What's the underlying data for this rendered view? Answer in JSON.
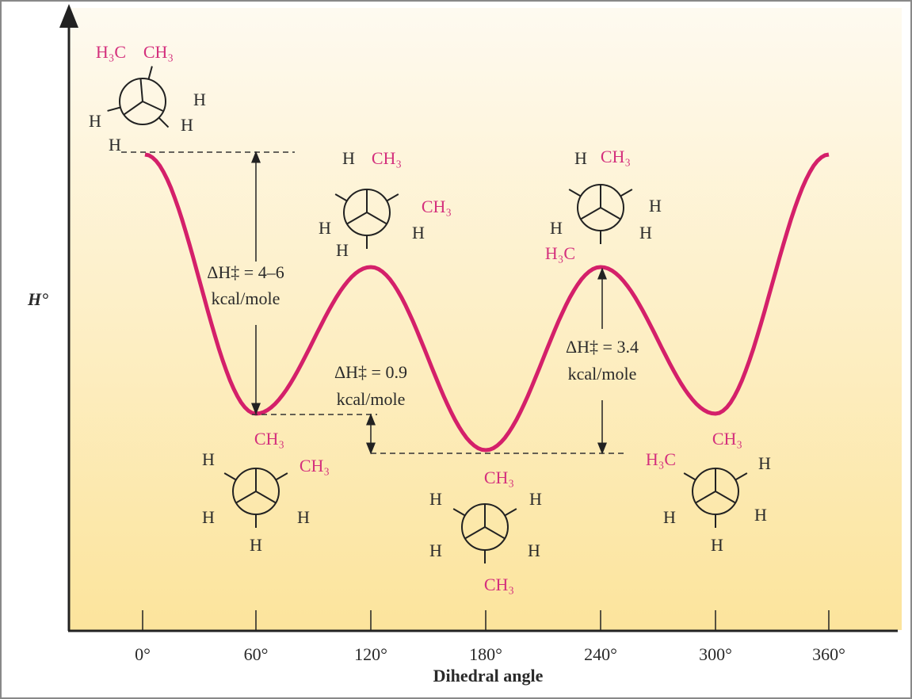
{
  "y_axis_label": "H°",
  "x_axis_label": "Dihedral angle",
  "x_ticks": [
    "0°",
    "60°",
    "120°",
    "180°",
    "240°",
    "300°",
    "360°"
  ],
  "barriers": [
    {
      "line1": "ΔH‡ = 4–6",
      "line2": "kcal/mole"
    },
    {
      "line1": "ΔH‡ = 0.9",
      "line2": "kcal/mole"
    },
    {
      "line1": "ΔH‡ = 3.4",
      "line2": "kcal/mole"
    }
  ],
  "conformations": [
    {
      "labels": [
        "H₃C",
        "CH₃",
        "H",
        "H",
        "H",
        "H"
      ]
    },
    {
      "labels": [
        "H",
        "CH₃",
        "CH₃",
        "H",
        "H",
        "H"
      ]
    },
    {
      "labels": [
        "H",
        "CH₃",
        "H",
        "H",
        "H",
        "H₃C"
      ]
    },
    {
      "labels": [
        "CH₃",
        "H",
        "CH₃",
        "H",
        "H",
        "H"
      ]
    },
    {
      "labels": [
        "CH₃",
        "H",
        "H",
        "H",
        "H",
        "CH₃"
      ]
    },
    {
      "labels": [
        "CH₃",
        "H₃C",
        "H",
        "H",
        "H",
        "H"
      ]
    }
  ]
}
